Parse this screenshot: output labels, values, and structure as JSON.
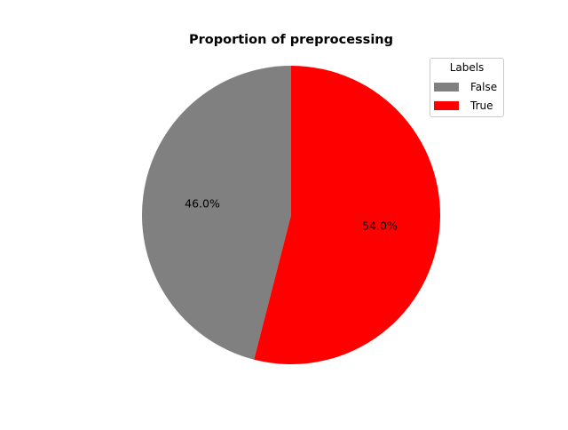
{
  "chart_data": {
    "type": "pie",
    "title": "Proportion of preprocessing",
    "legend_title": "Labels",
    "legend_placement": "top-right",
    "slices": [
      {
        "label": "False",
        "value": 46.0,
        "pct_label": "46.0%",
        "color": "#808080"
      },
      {
        "label": "True",
        "value": 54.0,
        "pct_label": "54.0%",
        "color": "#ff0000"
      }
    ],
    "start_angle_deg": 90,
    "direction": "counterclockwise"
  }
}
